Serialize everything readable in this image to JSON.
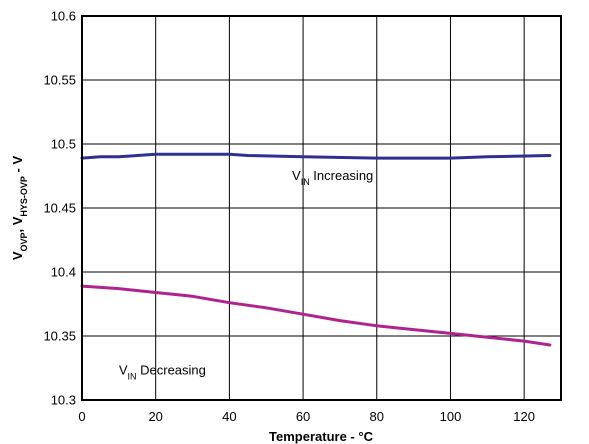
{
  "chart_data": {
    "type": "line",
    "xlabel": "Temperature - °C",
    "ylabel": {
      "parts": [
        {
          "text": "V",
          "sub": false
        },
        {
          "text": "OVP",
          "sub": true
        },
        {
          "text": ", V",
          "sub": false
        },
        {
          "text": "HYS-OVP",
          "sub": true
        },
        {
          "text": " - V",
          "sub": false
        }
      ]
    },
    "xlim": [
      0,
      130
    ],
    "ylim": [
      10.3,
      10.6
    ],
    "grid": true,
    "x_ticks": [
      {
        "value": 0,
        "label": "0"
      },
      {
        "value": 20,
        "label": "20"
      },
      {
        "value": 40,
        "label": "40"
      },
      {
        "value": 60,
        "label": "60"
      },
      {
        "value": 80,
        "label": "80"
      },
      {
        "value": 100,
        "label": "100"
      },
      {
        "value": 120,
        "label": "120"
      }
    ],
    "y_ticks": [
      {
        "value": 10.3,
        "label": "10.3"
      },
      {
        "value": 10.35,
        "label": "10.35"
      },
      {
        "value": 10.4,
        "label": "10.4"
      },
      {
        "value": 10.45,
        "label": "10.45"
      },
      {
        "value": 10.5,
        "label": "10.5"
      },
      {
        "value": 10.55,
        "label": "10.55"
      },
      {
        "value": 10.6,
        "label": "10.6"
      }
    ],
    "series": [
      {
        "color": "#2e3192",
        "x": [
          0,
          5,
          10,
          15,
          20,
          30,
          40,
          45,
          60,
          80,
          100,
          110,
          127
        ],
        "y": [
          10.489,
          10.49,
          10.49,
          10.491,
          10.492,
          10.492,
          10.492,
          10.491,
          10.49,
          10.489,
          10.489,
          10.49,
          10.491
        ]
      },
      {
        "color": "#b0238e",
        "x": [
          0,
          5,
          10,
          20,
          30,
          40,
          50,
          60,
          70,
          80,
          90,
          100,
          110,
          120,
          127
        ],
        "y": [
          10.389,
          10.388,
          10.387,
          10.384,
          10.381,
          10.376,
          10.372,
          10.367,
          10.362,
          10.358,
          10.355,
          10.352,
          10.349,
          10.346,
          10.343
        ]
      }
    ],
    "annotations": [
      {
        "main": "V",
        "sub": "IN",
        "rest": " Increasing",
        "x": 57,
        "y": 10.472
      },
      {
        "main": "V",
        "sub": "IN",
        "rest": " Decreasing",
        "x": 10,
        "y": 10.32
      }
    ]
  }
}
